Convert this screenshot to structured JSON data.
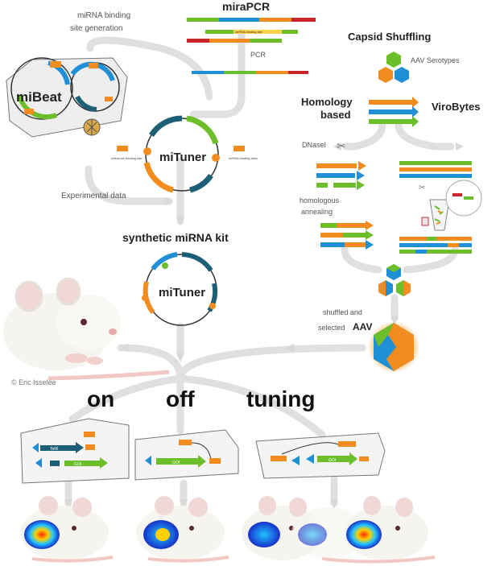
{
  "labels": {
    "mirapcr": "miraPCR",
    "mirna_site_gen": "miRNA binding\nsite generation",
    "mirna_binding_site": "miRNA binding site",
    "pcr": "PCR",
    "mibeat": "miBeat",
    "mituner": "miTuner",
    "experimental_data": "Experimental data",
    "reference_binding_site": "reference binding site",
    "mirna_binding_sites": "miRNA binding sites",
    "capsid_shuffling": "Capsid Shuffling",
    "aav_serotypes": "AAV Serotypes",
    "homology_based": "Homology\nbased",
    "virobytes": "ViroBytes",
    "dnasel": "DNaseI",
    "homologous_annealing": "homologous\nannealing",
    "synthetic_mirna_kit": "synthetic miRNA kit",
    "shuffled_selected": "shuffled and\nselected",
    "aav": "AAV",
    "copyright": "© Eric Isselée",
    "on": "on",
    "off": "off",
    "tuning": "tuning",
    "tetr": "TetR",
    "goi": "GOI"
  },
  "colors": {
    "flow_arrow": "#dcdcdc",
    "orange": "#f28c1e",
    "green": "#6cbf2a",
    "blue": "#1f8fd6",
    "red": "#c8262b",
    "dark_teal": "#1e5f78"
  }
}
